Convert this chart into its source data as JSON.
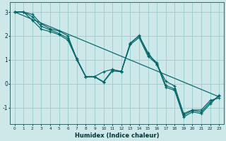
{
  "xlabel": "Humidex (Indice chaleur)",
  "ylabel": "",
  "bg_color": "#cce8e8",
  "line_color": "#006666",
  "grid_color": "#99cccc",
  "xlim": [
    -0.5,
    23.5
  ],
  "ylim": [
    -1.7,
    3.4
  ],
  "xticks": [
    0,
    1,
    2,
    3,
    4,
    5,
    6,
    7,
    8,
    9,
    10,
    11,
    12,
    13,
    14,
    15,
    16,
    17,
    18,
    19,
    20,
    21,
    22,
    23
  ],
  "yticks": [
    -1,
    0,
    1,
    2,
    3
  ],
  "series": [
    [
      3.0,
      3.0,
      2.9,
      2.5,
      2.3,
      2.2,
      2.0,
      1.0,
      0.3,
      0.3,
      0.5,
      0.6,
      0.5,
      1.7,
      2.0,
      1.3,
      0.8,
      0.1,
      -0.1,
      -1.25,
      -1.1,
      -1.1,
      -0.7,
      -0.6
    ],
    [
      3.0,
      3.0,
      2.8,
      2.4,
      2.25,
      2.1,
      1.9,
      1.05,
      0.3,
      0.3,
      0.08,
      0.58,
      0.52,
      1.68,
      2.02,
      1.22,
      0.88,
      -0.08,
      -0.22,
      -1.32,
      -1.12,
      -1.18,
      -0.78,
      -0.52
    ],
    [
      3.0,
      3.0,
      2.65,
      2.28,
      2.18,
      2.05,
      1.82,
      1.0,
      0.28,
      0.28,
      0.06,
      0.53,
      0.5,
      1.63,
      1.93,
      1.15,
      0.82,
      -0.15,
      -0.28,
      -1.4,
      -1.18,
      -1.25,
      -0.85,
      -0.48
    ]
  ],
  "straight_line": [
    [
      0,
      3.0
    ],
    [
      23,
      -0.55
    ]
  ]
}
